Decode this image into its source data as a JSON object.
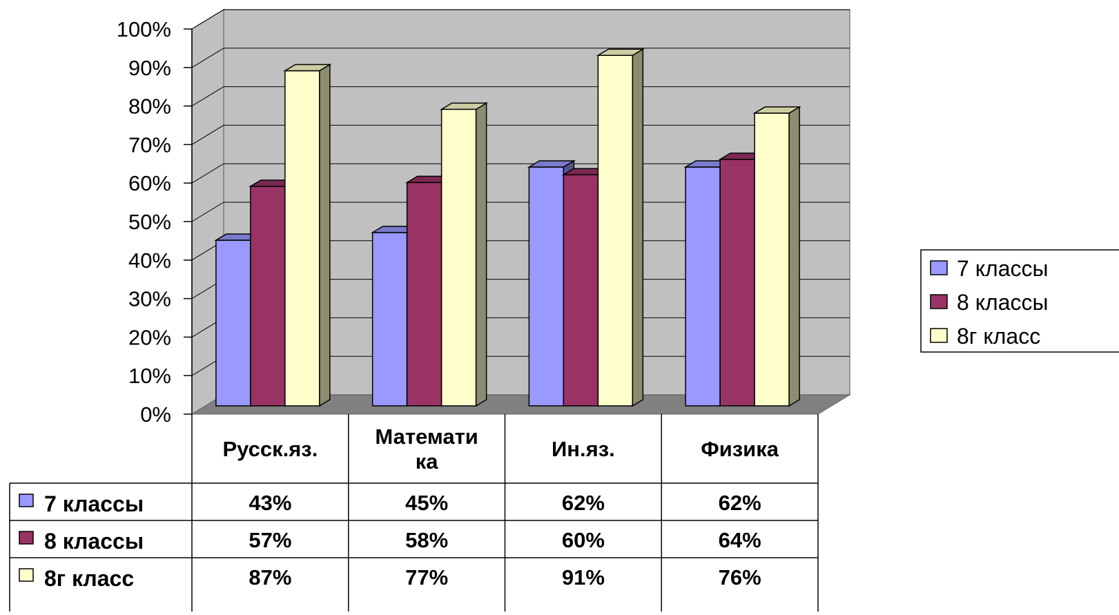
{
  "chart_data": {
    "type": "bar",
    "categories": [
      "Русск.яз.",
      "Математи ка",
      "Ин.яз.",
      "Физика"
    ],
    "category_lines": [
      [
        "Русск.яз."
      ],
      [
        "Математи",
        "ка"
      ],
      [
        "Ин.яз."
      ],
      [
        "Физика"
      ]
    ],
    "series": [
      {
        "name": "7 классы",
        "values": [
          43,
          45,
          62,
          62
        ],
        "labels": [
          "43%",
          "45%",
          "62%",
          "62%"
        ],
        "color": "#9999ff"
      },
      {
        "name": "8 классы",
        "values": [
          57,
          58,
          60,
          64
        ],
        "labels": [
          "57%",
          "58%",
          "60%",
          "64%"
        ],
        "color": "#993366"
      },
      {
        "name": "8г класс",
        "values": [
          87,
          77,
          91,
          76
        ],
        "labels": [
          "87%",
          "77%",
          "91%",
          "76%"
        ],
        "color": "#ffffcc"
      }
    ],
    "y_ticks": [
      "0%",
      "10%",
      "20%",
      "30%",
      "40%",
      "50%",
      "60%",
      "70%",
      "80%",
      "90%",
      "100%"
    ],
    "ylim": [
      0,
      100
    ],
    "grid": true,
    "style": "3d-clustered-column",
    "legend": "right",
    "data_table": true,
    "colors": {
      "wall": "#c0c0c0",
      "floor": "#808080",
      "grid": "#000000"
    }
  }
}
